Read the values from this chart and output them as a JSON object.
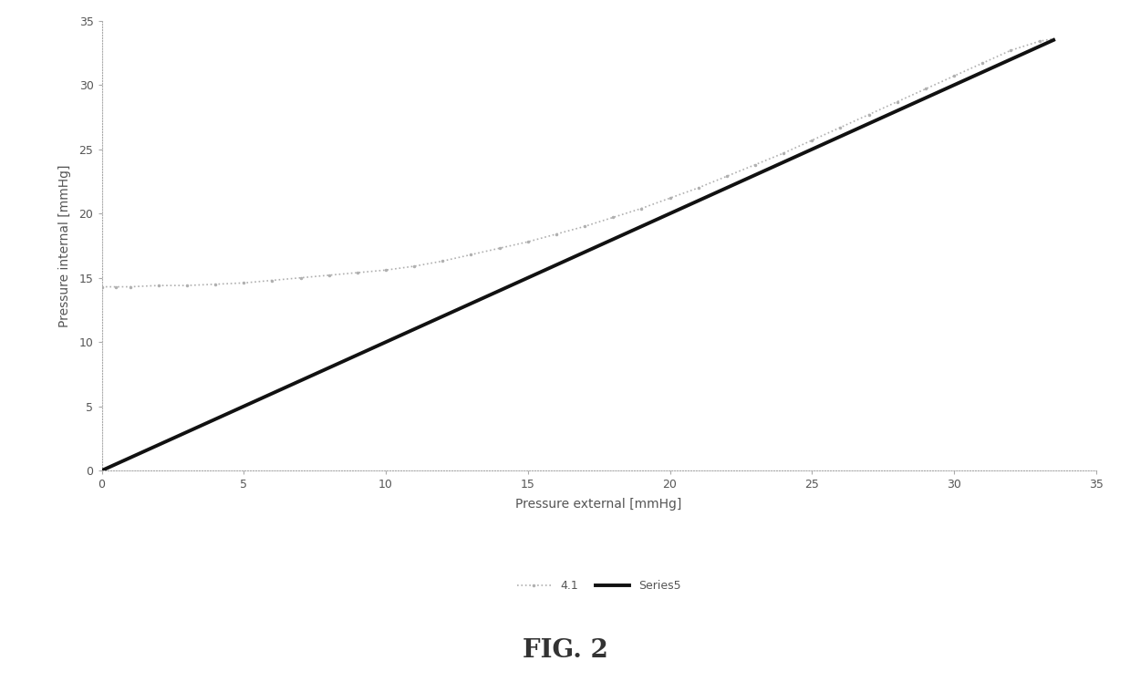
{
  "title": "FIG. 2",
  "xlabel": "Pressure external [mmHg]",
  "ylabel": "Pressure internal [mmHg]",
  "xlim": [
    0,
    35
  ],
  "ylim": [
    0,
    35
  ],
  "xticks": [
    0,
    5,
    10,
    15,
    20,
    25,
    30,
    35
  ],
  "yticks": [
    0,
    5,
    10,
    15,
    20,
    25,
    30,
    35
  ],
  "series1_label": "4.1",
  "series1_x": [
    0,
    0.5,
    1,
    2,
    3,
    4,
    5,
    6,
    7,
    8,
    9,
    10,
    11,
    12,
    13,
    14,
    15,
    16,
    17,
    18,
    19,
    20,
    21,
    22,
    23,
    24,
    25,
    26,
    27,
    28,
    29,
    30,
    31,
    32,
    33,
    33.5
  ],
  "series1_y": [
    14.3,
    14.3,
    14.3,
    14.4,
    14.4,
    14.5,
    14.6,
    14.8,
    15.0,
    15.2,
    15.4,
    15.6,
    15.9,
    16.3,
    16.8,
    17.3,
    17.8,
    18.4,
    19.0,
    19.7,
    20.4,
    21.2,
    22.0,
    22.9,
    23.8,
    24.7,
    25.7,
    26.7,
    27.7,
    28.7,
    29.7,
    30.7,
    31.7,
    32.7,
    33.4,
    33.6
  ],
  "series2_label": "Series5",
  "series2_x": [
    0,
    33.5
  ],
  "series2_y": [
    0,
    33.5
  ],
  "series1_color": "#b0b0b0",
  "series2_color": "#111111",
  "series1_linewidth": 1.2,
  "series2_linewidth": 2.8,
  "background_color": "#ffffff",
  "spine_color": "#aaaaaa",
  "xlabel_fontsize": 10,
  "ylabel_fontsize": 10,
  "title_fontsize": 20,
  "tick_fontsize": 9,
  "legend_fontsize": 9
}
